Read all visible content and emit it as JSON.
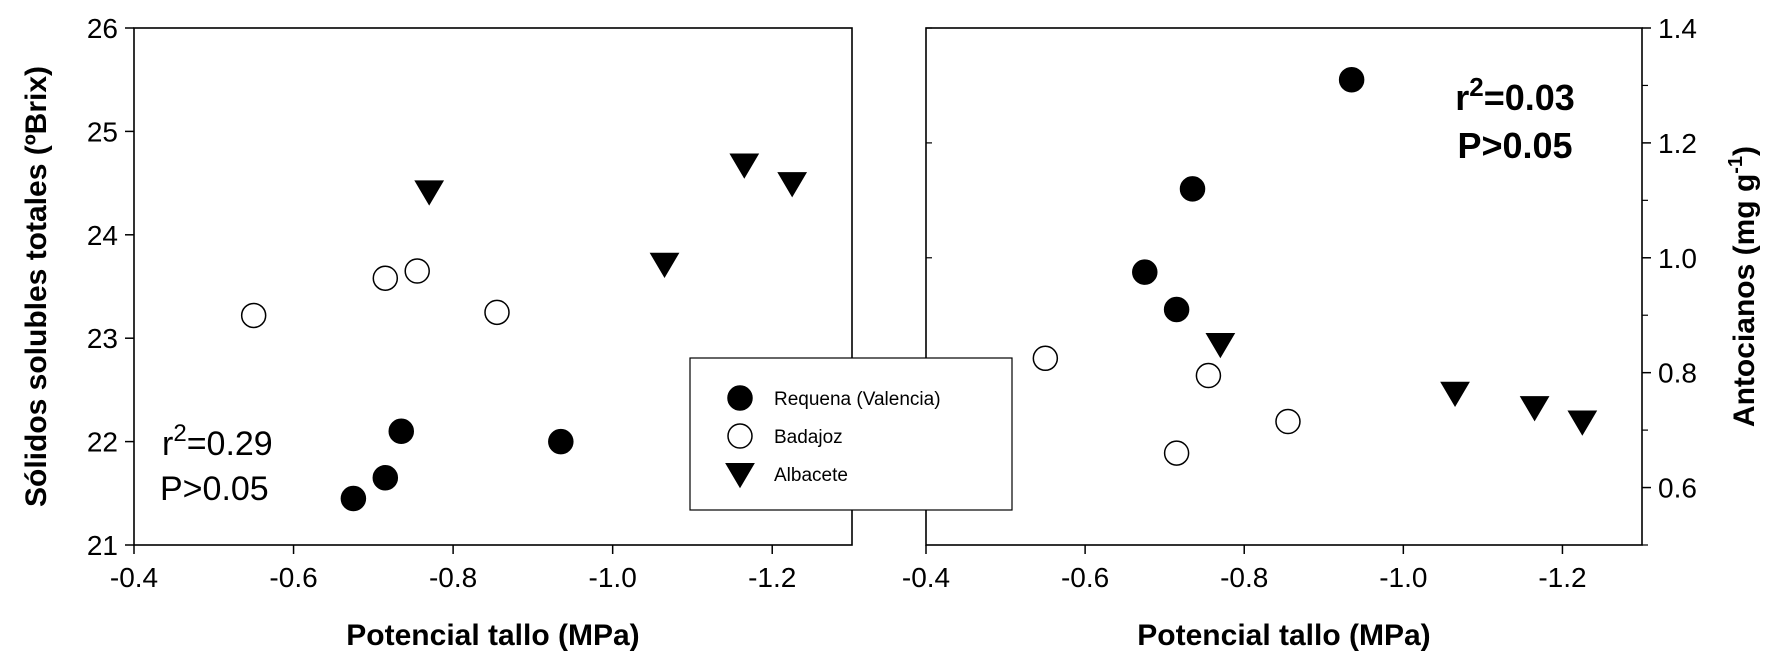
{
  "chart_data": [
    {
      "type": "scatter",
      "xlabel": "Potencial tallo (MPa)",
      "ylabel": "Sólidos solubles totales (ºBrix)",
      "xlim": [
        -0.4,
        -1.3
      ],
      "ylim": [
        21,
        26
      ],
      "x_ticks": [
        "-0.4",
        "-0.6",
        "-0.8",
        "-1.0",
        "-1.2"
      ],
      "y_ticks": [
        "21",
        "22",
        "23",
        "24",
        "25",
        "26"
      ],
      "y_axis_side": "left",
      "stat_lines": [
        "0.29",
        "P>0.05"
      ],
      "stat_prefix": "r",
      "stat_exp": "2",
      "stat_eq": "=",
      "series": [
        {
          "name": "Requena (Valencia)",
          "marker": "filled-circle",
          "points": [
            [
              -0.675,
              21.45
            ],
            [
              -0.715,
              21.65
            ],
            [
              -0.735,
              22.1
            ],
            [
              -0.935,
              22.0
            ]
          ]
        },
        {
          "name": "Badajoz",
          "marker": "open-circle",
          "points": [
            [
              -0.55,
              23.22
            ],
            [
              -0.715,
              23.58
            ],
            [
              -0.755,
              23.65
            ],
            [
              -0.855,
              23.25
            ]
          ]
        },
        {
          "name": "Albacete",
          "marker": "filled-triangle-down",
          "points": [
            [
              -0.77,
              24.42
            ],
            [
              -1.065,
              23.72
            ],
            [
              -1.165,
              24.68
            ],
            [
              -1.225,
              24.5
            ]
          ]
        }
      ]
    },
    {
      "type": "scatter",
      "xlabel": "Potencial tallo (MPa)",
      "ylabel": "Antocianos (mg g",
      "ylabel_sup": "-1",
      "ylabel_end": ")",
      "xlim": [
        -0.4,
        -1.3
      ],
      "ylim": [
        0.5,
        1.4
      ],
      "x_ticks": [
        "-0.4",
        "-0.6",
        "-0.8",
        "-1.0",
        "-1.2"
      ],
      "y_ticks": [
        "0.6",
        "0.8",
        "1.0",
        "1.2",
        "1.4"
      ],
      "y_axis_side": "right",
      "stat_lines": [
        "0.03",
        "P>0.05"
      ],
      "stat_prefix": "r",
      "stat_exp": "2",
      "stat_eq": "=",
      "series": [
        {
          "name": "Requena (Valencia)",
          "marker": "filled-circle",
          "points": [
            [
              -0.675,
              0.975
            ],
            [
              -0.715,
              0.91
            ],
            [
              -0.735,
              1.12
            ],
            [
              -0.935,
              1.31
            ]
          ]
        },
        {
          "name": "Badajoz",
          "marker": "open-circle",
          "points": [
            [
              -0.55,
              0.825
            ],
            [
              -0.715,
              0.66
            ],
            [
              -0.755,
              0.795
            ],
            [
              -0.855,
              0.715
            ]
          ]
        },
        {
          "name": "Albacete",
          "marker": "filled-triangle-down",
          "points": [
            [
              -0.77,
              0.85
            ],
            [
              -1.065,
              0.765
            ],
            [
              -1.165,
              0.74
            ],
            [
              -1.225,
              0.715
            ]
          ]
        }
      ]
    }
  ],
  "legend": {
    "items": [
      {
        "label": "Requena (Valencia)",
        "marker": "filled-circle"
      },
      {
        "label": "Badajoz",
        "marker": "open-circle"
      },
      {
        "label": "Albacete",
        "marker": "filled-triangle-down"
      }
    ]
  }
}
